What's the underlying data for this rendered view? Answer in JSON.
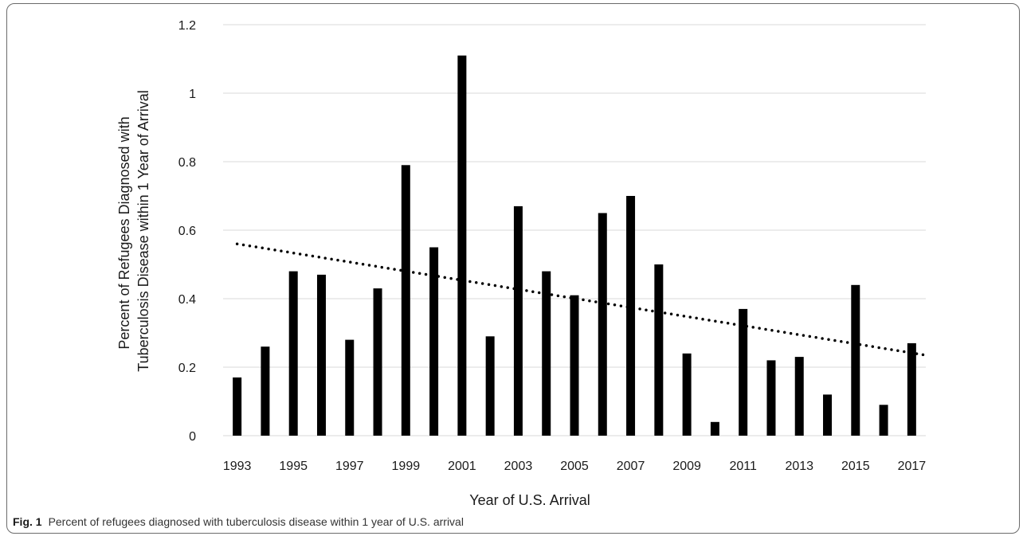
{
  "figure": {
    "caption_label": "Fig. 1",
    "caption_text": "Percent of refugees diagnosed with tuberculosis disease within 1 year of U.S. arrival"
  },
  "colors": {
    "bar": "#000000",
    "grid": "#d9d9d9",
    "trendline": "#000000"
  },
  "chart_data": {
    "type": "bar",
    "xlabel": "Year of U.S. Arrival",
    "ylabel_lines": [
      "Percent of Refugees Diagnosed with",
      "Tuberculosis Disease within 1 Year of Arrival"
    ],
    "categories": [
      "1993",
      "1994",
      "1995",
      "1996",
      "1997",
      "1998",
      "1999",
      "2000",
      "2001",
      "2002",
      "2003",
      "2004",
      "2005",
      "2006",
      "2007",
      "2008",
      "2009",
      "2010",
      "2011",
      "2012",
      "2013",
      "2014",
      "2015",
      "2016",
      "2017"
    ],
    "x_tick_labels": [
      "1993",
      "1995",
      "1997",
      "1999",
      "2001",
      "2003",
      "2005",
      "2007",
      "2009",
      "2011",
      "2013",
      "2015",
      "2017"
    ],
    "values": [
      0.17,
      0.26,
      0.48,
      0.47,
      0.28,
      0.43,
      0.79,
      0.55,
      1.11,
      0.29,
      0.67,
      0.48,
      0.41,
      0.65,
      0.7,
      0.5,
      0.24,
      0.04,
      0.37,
      0.22,
      0.23,
      0.12,
      0.44,
      0.09,
      0.27
    ],
    "ylim": [
      0,
      1.2
    ],
    "y_ticks": [
      0,
      0.2,
      0.4,
      0.6,
      0.8,
      1,
      1.2
    ],
    "y_tick_labels": [
      "0",
      "0.2",
      "0.4",
      "0.6",
      "0.8",
      "1",
      "1.2"
    ],
    "grid": true,
    "trendline": {
      "type": "linear",
      "style": "dotted",
      "start_value": 0.56,
      "end_value": 0.235
    }
  }
}
